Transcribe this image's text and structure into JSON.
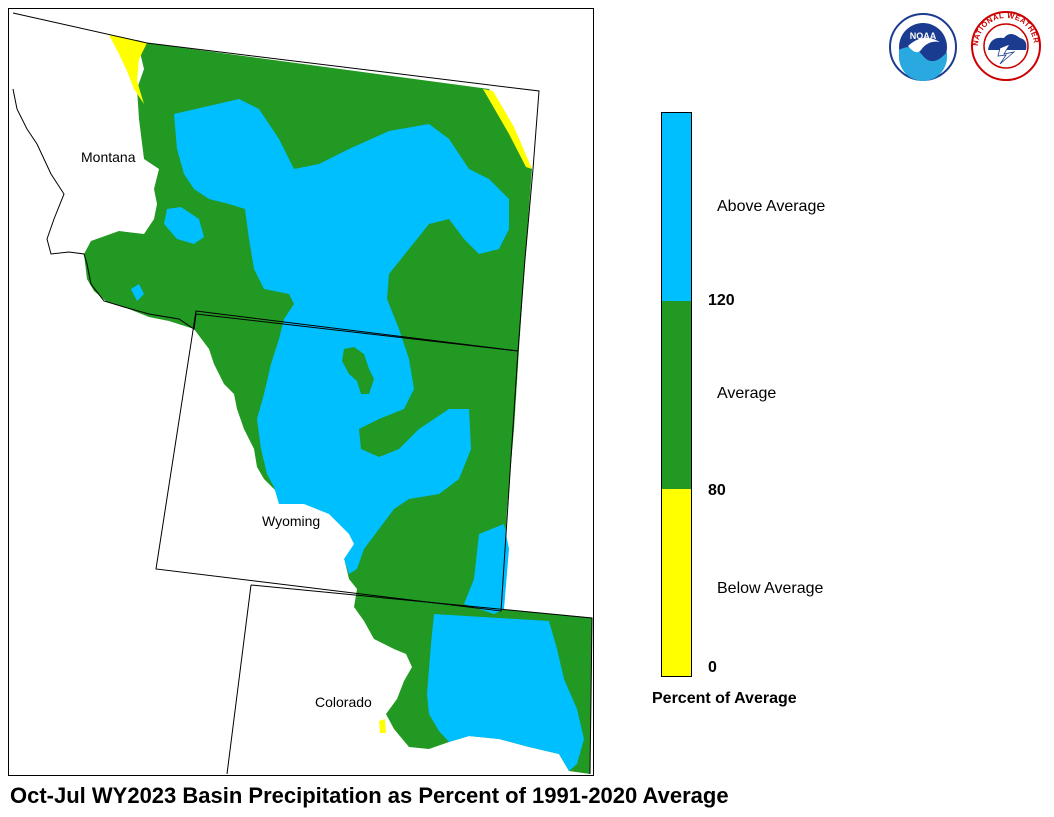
{
  "title": "Oct-Jul WY2023 Basin Precipitation as Percent of 1991-2020 Average",
  "state_labels": {
    "montana": "Montana",
    "wyoming": "Wyoming",
    "colorado": "Colorado"
  },
  "legend": {
    "title": "Percent of Average",
    "categories": [
      {
        "label": "Above Average",
        "color": "#00BFFF",
        "min": 120
      },
      {
        "label": "Average",
        "color": "#229922",
        "min": 80,
        "max": 120
      },
      {
        "label": "Below Average",
        "color": "#FFFF00",
        "min": 0,
        "max": 80
      }
    ],
    "ticks": [
      "120",
      "80",
      "0"
    ]
  },
  "colors": {
    "above": "#00BFFF",
    "average": "#229922",
    "below": "#FFFF00",
    "boundary": "#000000"
  },
  "logos": {
    "noaa": "NOAA",
    "nws_letters": "NATIONAL WEATHER SERVICE"
  }
}
